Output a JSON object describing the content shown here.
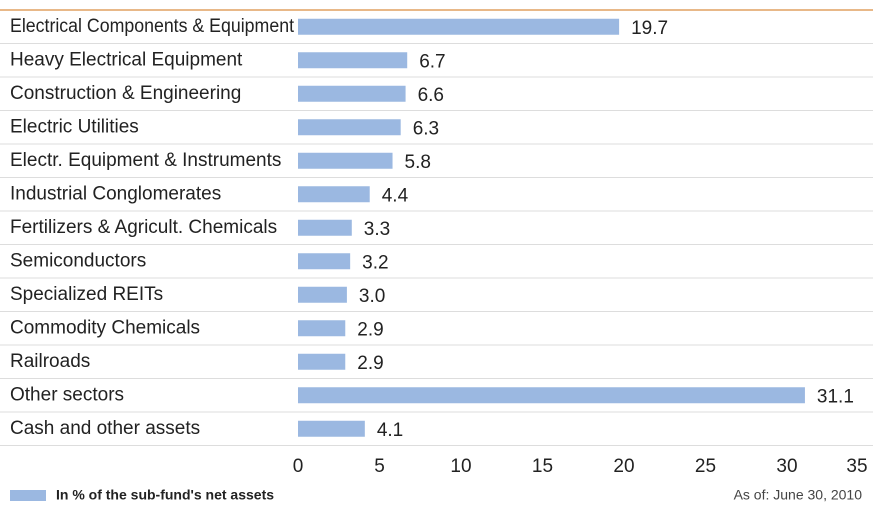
{
  "chart_data": {
    "type": "bar",
    "orientation": "horizontal",
    "categories": [
      "Electrical Components & Equipment",
      "Heavy Electrical Equipment",
      "Construction & Engineering",
      "Electric Utilities",
      "Electr. Equipment & Instruments",
      "Industrial Conglomerates",
      "Fertilizers & Agricult. Chemicals",
      "Semiconductors",
      "Specialized REITs",
      "Commodity Chemicals",
      "Railroads",
      "Other sectors",
      "Cash and other assets"
    ],
    "series": [
      {
        "name": "In % of the sub-fund's net assets",
        "color": "#9bb8e1",
        "values": [
          19.7,
          6.7,
          6.6,
          6.3,
          5.8,
          4.4,
          3.3,
          3.2,
          3,
          2.9,
          2.9,
          31.1,
          4.1
        ],
        "value_labels": [
          "19.7",
          "6.7",
          "6.6",
          "6.3",
          "5.8",
          "4.4",
          "3.3",
          "3.2",
          "3.0",
          "2.9",
          "2.9",
          "31.1",
          "4.1"
        ]
      }
    ],
    "xlim": [
      0,
      35
    ],
    "xticks": [
      0,
      5,
      10,
      15,
      20,
      25,
      30,
      35
    ],
    "note": "As of: June 30, 2010"
  }
}
